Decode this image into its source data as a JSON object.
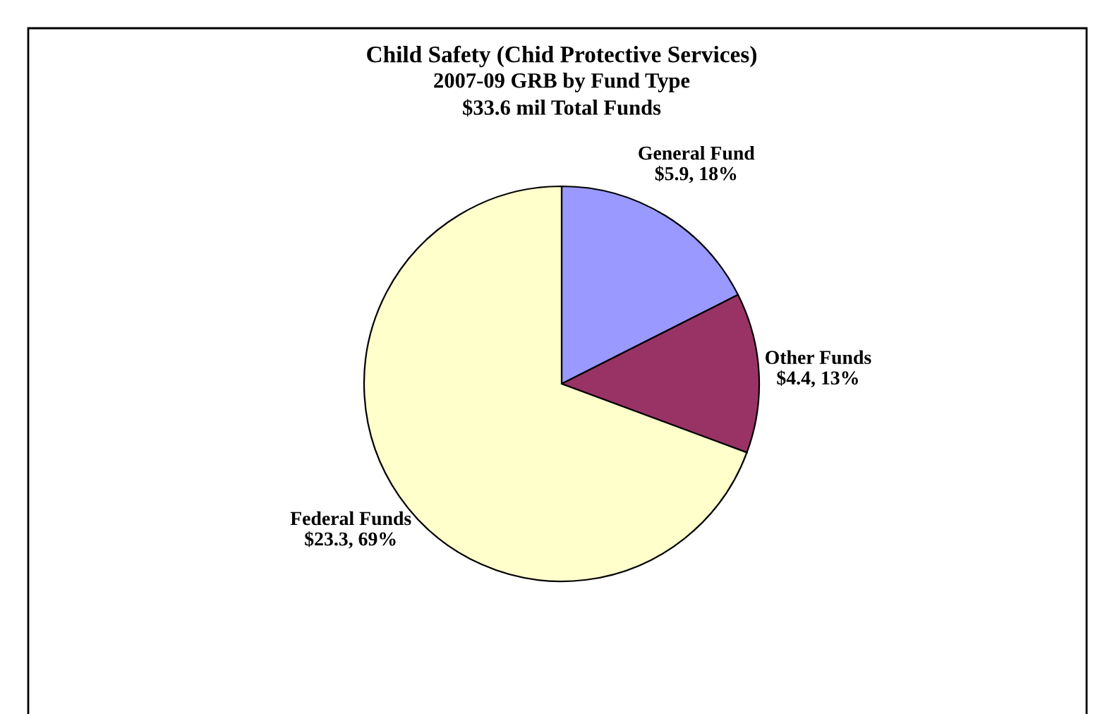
{
  "chart_data": {
    "type": "pie",
    "title": "Child Safety (Chid Protective Services)",
    "subtitle": "2007-09 GRB by Fund Type\n$33.6 mil Total Funds",
    "categories": [
      "General Fund",
      "Other Funds",
      "Federal Funds"
    ],
    "values": [
      5.9,
      4.4,
      23.3
    ],
    "value_labels": [
      "$5.9, 18%",
      "$4.4, 13%",
      "$23.3, 69%"
    ],
    "colors": [
      "#9999ff",
      "#993366",
      "#ffffcc"
    ],
    "legend": false
  }
}
